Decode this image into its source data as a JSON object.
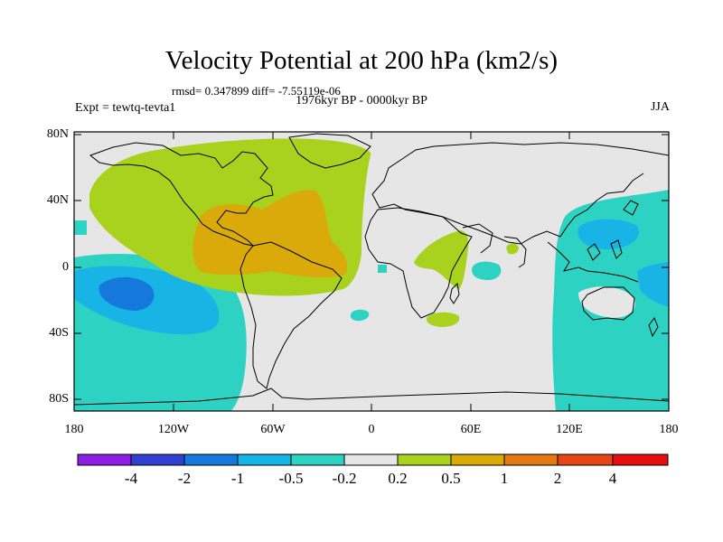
{
  "header": {
    "title": "Velocity Potential at 200 hPa (km2/s)",
    "stats": "rmsd= 0.347899 diff= -7.55119e-06",
    "experiment": "Expt = tewtq-tevta1",
    "period": "1976kyr BP - 0000kyr BP",
    "season": "JJA"
  },
  "axes": {
    "lat_labels": [
      "80N",
      "40N",
      "0",
      "40S",
      "80S"
    ],
    "lon_labels": [
      "180",
      "120W",
      "60W",
      "0",
      "60E",
      "120E",
      "180"
    ]
  },
  "colorbar": {
    "levels": [
      "-4",
      "-2",
      "-1",
      "-0.5",
      "-0.2",
      "0.2",
      "0.5",
      "1",
      "2",
      "4"
    ],
    "colors": [
      "#8c1ee6",
      "#2f3fd1",
      "#1478dc",
      "#19b4e6",
      "#2ed2c2",
      "#e6e6e6",
      "#a8d21e",
      "#d9aa0a",
      "#e47a14",
      "#e64614",
      "#e60f0f"
    ]
  },
  "palette": {
    "neutral": "#e6e6e6",
    "positive_weak": "#a8d21e",
    "positive_mid": "#d9aa0a",
    "negative_weak": "#2ed2c2",
    "negative_mid": "#19b4e6",
    "negative_strong": "#1478dc"
  }
}
